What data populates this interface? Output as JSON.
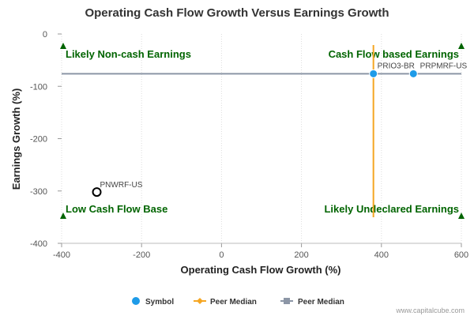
{
  "chart_data": {
    "type": "scatter",
    "title": "Operating Cash Flow Growth Versus Earnings Growth",
    "xlabel": "Operating Cash Flow Growth (%)",
    "ylabel": "Earnings Growth (%)",
    "xlim": [
      -400,
      600
    ],
    "ylim": [
      -400,
      0
    ],
    "x_ticks": [
      "-400",
      "-200",
      "0",
      "200",
      "400",
      "600"
    ],
    "y_ticks": [
      "0",
      "-100",
      "-200",
      "-300",
      "-400"
    ],
    "points": [
      {
        "name": "PRIO3-BR",
        "x": 380,
        "y": -76,
        "style": "symbol-blue",
        "label": "PRIO3-BR"
      },
      {
        "name": "PRPMRF-US",
        "x": 480,
        "y": -76,
        "style": "symbol-blue",
        "label": "PRPMRF-US"
      },
      {
        "name": "PNWRF-US",
        "x": -312,
        "y": -302,
        "style": "hollow-black",
        "label": "PNWRF-US"
      }
    ],
    "peer_median_x": 380,
    "peer_median_y": -76,
    "quadrant_labels": {
      "top_left": "Likely Non-cash Earnings",
      "top_right": "Cash Flow based Earnings",
      "bottom_left": "Low Cash Flow Base",
      "bottom_right": "Likely Undeclared Earnings"
    },
    "legend": [
      {
        "label": "Symbol",
        "color": "#1e9be8"
      },
      {
        "label": "Peer Median",
        "color": "#f5a623"
      },
      {
        "label": "Peer Median",
        "color": "#8c96a6"
      }
    ],
    "credit": "www.capitalcube.com",
    "colors": {
      "symbol": "#1e9be8",
      "median_x_line": "#f5a623",
      "median_y_line": "#8c96a6",
      "quadrant": "#006400",
      "grid": "#dddddd"
    }
  }
}
